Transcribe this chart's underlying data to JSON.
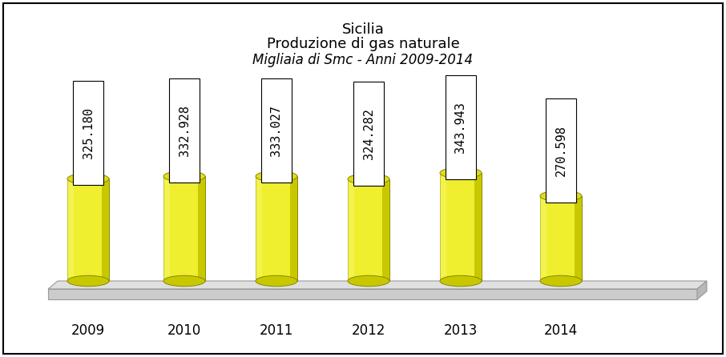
{
  "title_line1": "Sicilia",
  "title_line2": "Produzione di gas naturale",
  "title_line3": "Migliaia di Smc - Anni 2009-2014",
  "categories": [
    "2009",
    "2010",
    "2011",
    "2012",
    "2013",
    "2014"
  ],
  "values": [
    325.18,
    332.928,
    333.027,
    324.282,
    343.943,
    270.598
  ],
  "value_labels": [
    "325.180",
    "332.928",
    "333.027",
    "324.282",
    "343.943",
    "270.598"
  ],
  "bar_color_face": "#EFEF30",
  "bar_color_right": "#C8C800",
  "bar_color_top": "#DEDE20",
  "background_color": "#ffffff",
  "border_color": "#000000",
  "title_fontsize": 13,
  "label_fontsize": 11,
  "tick_fontsize": 12
}
